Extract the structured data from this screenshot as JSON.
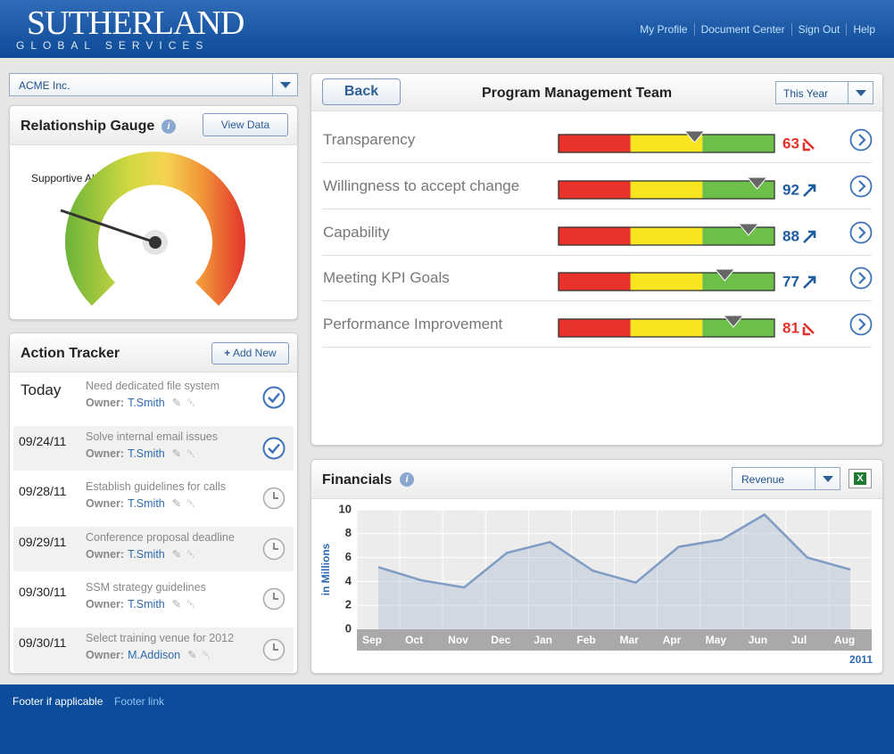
{
  "header": {
    "logo_main": "SUTHERLAND",
    "logo_sub": "GLOBAL SERVICES",
    "nav": [
      "My Profile",
      "Document Center",
      "Sign Out",
      "Help"
    ]
  },
  "company_select": "ACME Inc.",
  "gauge": {
    "title": "Relationship Gauge",
    "button": "View Data",
    "label": "Supportive Ally"
  },
  "action_tracker": {
    "title": "Action Tracker",
    "button": "Add New",
    "owner_label": "Owner:",
    "items": [
      {
        "date": "Today",
        "task": "Need dedicated file system",
        "owner": "T.Smith",
        "completed": true
      },
      {
        "date": "09/24/11",
        "task": "Solve internal email issues",
        "owner": "T.Smith",
        "completed": true
      },
      {
        "date": "09/28/11",
        "task": "Establish guidelines for calls",
        "owner": "T.Smith",
        "completed": false
      },
      {
        "date": "09/29/11",
        "task": "Conference proposal deadline",
        "owner": "T.Smith",
        "completed": false
      },
      {
        "date": "09/30/11",
        "task": "SSM strategy guidelines",
        "owner": "T.Smith",
        "completed": false
      },
      {
        "date": "09/30/11",
        "task": "Select training venue for 2012",
        "owner": "M.Addison",
        "completed": false
      }
    ]
  },
  "program": {
    "back": "Back",
    "title": "Program Management Team",
    "period": "This Year",
    "scale": [
      0,
      100
    ],
    "metrics": [
      {
        "name": "Transparency",
        "value": 63,
        "trend": "down"
      },
      {
        "name": "Willingness to accept change",
        "value": 92,
        "trend": "up"
      },
      {
        "name": "Capability",
        "value": 88,
        "trend": "up"
      },
      {
        "name": "Meeting KPI Goals",
        "value": 77,
        "trend": "up"
      },
      {
        "name": "Performance Improvement",
        "value": 81,
        "trend": "down"
      }
    ]
  },
  "financials": {
    "type": "area",
    "title": "Financials",
    "dropdown": "Revenue",
    "y_label": "in Millions",
    "year": "2011",
    "categories": [
      "Sep",
      "Oct",
      "Nov",
      "Dec",
      "Jan",
      "Feb",
      "Mar",
      "Apr",
      "May",
      "Jun",
      "Jul",
      "Aug"
    ],
    "values": [
      5.2,
      4.1,
      3.5,
      6.4,
      7.3,
      4.9,
      3.9,
      6.9,
      7.5,
      9.6,
      6.0,
      5.0
    ],
    "ylim": [
      0,
      10
    ],
    "yticks": [
      0,
      2,
      4,
      6,
      8,
      10
    ],
    "color": "#7f9cc4"
  },
  "footer": {
    "text": "Footer if applicable",
    "link": "Footer link"
  }
}
